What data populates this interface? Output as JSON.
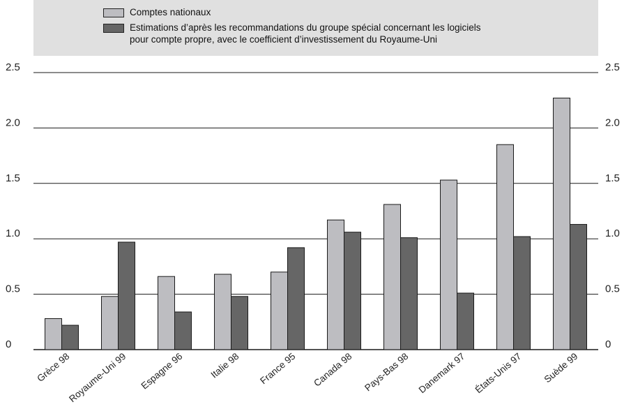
{
  "chart_data": {
    "type": "bar",
    "title": "",
    "xlabel": "",
    "ylabel": "",
    "ylim": [
      0,
      2.5
    ],
    "yticks": [
      "0",
      "0.5",
      "1.0",
      "1.5",
      "2.0",
      "2.5"
    ],
    "categories": [
      "Grèce 98",
      "Royaume-Uni 99",
      "Espagne 96",
      "Italie 98",
      "France 95",
      "Canada 98",
      "Pays-Bas 98",
      "Danemark 97",
      "États-Unis 97",
      "Suède 99"
    ],
    "series": [
      {
        "name": "Comptes nationaux",
        "color": "#bdbdc1",
        "values": [
          0.28,
          0.48,
          0.66,
          0.68,
          0.7,
          1.17,
          1.31,
          1.53,
          1.85,
          2.27
        ]
      },
      {
        "name": "Estimations d’après les recommandations du groupe spécial concernant les logiciels pour compte propre, avec le coefficient d’investissement du Royaume-Uni",
        "color": "#666666",
        "values": [
          0.22,
          0.97,
          0.34,
          0.48,
          0.92,
          1.06,
          1.01,
          0.51,
          1.02,
          1.13
        ]
      }
    ],
    "grid": true,
    "legend_position": "top"
  },
  "legend": {
    "item1": "Comptes nationaux",
    "item2_line1": "Estimations d’après les recommandations du groupe spécial concernant les logiciels",
    "item2_line2": "pour compte propre, avec le coefficient d’investissement du Royaume-Uni"
  }
}
